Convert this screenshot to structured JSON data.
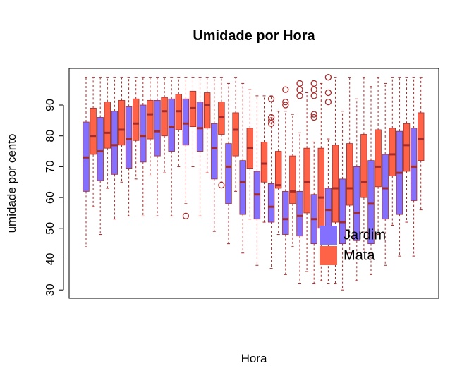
{
  "chart_data": {
    "type": "boxplot",
    "title": "Umidade por Hora",
    "xlabel": "Hora",
    "ylabel": "umidade por cento",
    "categories": [
      null,
      null,
      null,
      null,
      null,
      null,
      null,
      null,
      null,
      null,
      null,
      null,
      null,
      null,
      null,
      null,
      null,
      null,
      null,
      null,
      null,
      null,
      null,
      null
    ],
    "ylim": [
      27.3,
      101.9
    ],
    "yticks": [
      30,
      40,
      50,
      60,
      70,
      80,
      90
    ],
    "series": [
      {
        "name": "Jardim",
        "color": "#8470FF",
        "min": [
          44,
          48,
          53,
          54,
          54,
          54,
          54,
          58,
          54,
          49,
          45,
          42,
          38,
          37,
          35,
          32,
          32,
          32,
          30,
          33,
          35,
          38,
          41,
          41
        ],
        "q1": [
          62,
          65.5,
          67.5,
          69.5,
          71.5,
          73.5,
          75,
          77,
          75,
          66,
          58,
          54.5,
          53,
          52,
          48,
          47.5,
          45,
          46,
          45,
          46,
          45,
          53,
          54.5,
          59
        ],
        "median": [
          73,
          75,
          77,
          79,
          80,
          81.5,
          83,
          84,
          82.5,
          76,
          70,
          65,
          61,
          57,
          53,
          54,
          53,
          56,
          52,
          55,
          58,
          63,
          68,
          70
        ],
        "q3": [
          84.5,
          86,
          88,
          89.5,
          90,
          91.5,
          92,
          92,
          91,
          84,
          77.5,
          72,
          68.5,
          64.5,
          62,
          62,
          61,
          63,
          66,
          70,
          72,
          74,
          81.5,
          82.5
        ],
        "max": [
          99,
          99,
          99,
          99,
          99,
          99,
          99,
          99,
          99,
          99,
          97,
          97,
          93,
          93,
          88,
          81,
          78,
          79,
          88,
          92,
          96,
          97,
          99,
          99
        ],
        "outliers": [
          [],
          [],
          [],
          [],
          [],
          [],
          [],
          [
            54
          ],
          [],
          [],
          [],
          [],
          [],
          [
            92,
            86,
            85,
            84
          ],
          [
            95,
            91,
            90
          ],
          [
            97,
            95,
            93
          ],
          [
            97,
            95,
            93,
            87,
            86
          ],
          [
            99,
            94,
            91
          ],
          [],
          [],
          [],
          [],
          [],
          []
        ]
      },
      {
        "name": "Mata",
        "color": "#FF6347",
        "min": [
          57,
          63,
          65,
          66,
          67,
          68,
          70,
          70,
          68,
          65,
          62,
          53,
          52,
          48,
          44,
          36,
          33,
          32,
          42,
          43,
          48,
          51,
          52,
          56
        ],
        "q1": [
          74,
          76,
          77,
          78.5,
          79,
          80,
          82,
          83,
          82.5,
          80.5,
          73.5,
          69.5,
          65,
          63,
          58,
          55,
          50,
          52,
          57.5,
          60,
          63.5,
          67,
          68.5,
          72
        ],
        "median": [
          80,
          81,
          82,
          84,
          87,
          88,
          88,
          89,
          90,
          86,
          82,
          76,
          71,
          64,
          62,
          65,
          60,
          63,
          63,
          65,
          70,
          74,
          77,
          79
        ],
        "q3": [
          89,
          91,
          91.5,
          92,
          91.5,
          92.5,
          93.5,
          94.5,
          94,
          91,
          87.5,
          82.5,
          78,
          75,
          73.5,
          76,
          76,
          77,
          77.5,
          80.5,
          82,
          82.5,
          84,
          87.5
        ],
        "max": [
          99,
          99,
          99,
          99,
          99,
          99,
          99,
          99,
          99,
          99,
          99,
          95,
          93,
          88,
          87,
          94,
          97,
          99,
          99,
          99,
          99,
          99,
          99,
          99
        ],
        "outliers": [
          [],
          [],
          [],
          [],
          [],
          [],
          [],
          [],
          [],
          [
            64
          ],
          [],
          [],
          [],
          [],
          [],
          [],
          [],
          [],
          [],
          [],
          [],
          [],
          [],
          []
        ]
      }
    ]
  }
}
